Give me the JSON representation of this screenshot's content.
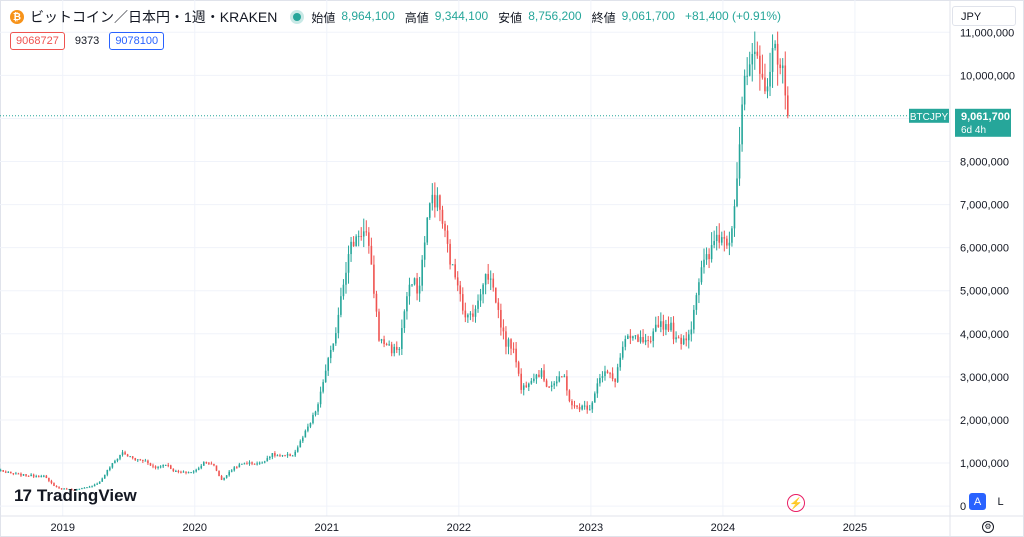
{
  "header": {
    "coin_glyph": "₿",
    "title": "ビットコイン／日本円・1週・KRAKEN",
    "ohlc": [
      {
        "label": "始値",
        "value": "8,964,100"
      },
      {
        "label": "高値",
        "value": "9,344,100"
      },
      {
        "label": "安値",
        "value": "8,756,200"
      },
      {
        "label": "終値",
        "value": "9,061,700"
      }
    ],
    "change": "+81,400 (+0.91%)"
  },
  "price_boxes": {
    "sell": "9068727",
    "spread": "9373",
    "buy": "9078100"
  },
  "currency": "JPY",
  "price_tag": {
    "symbol": "BTCJPY",
    "price": "9,061,700",
    "countdown": "6d 4h"
  },
  "logo": {
    "text": "TradingView"
  },
  "controls": {
    "auto": "A",
    "log": "L",
    "flash": "⚡",
    "settings": "⚙"
  },
  "colors": {
    "up": "#26a69a",
    "down": "#ef5350",
    "accent": "#2962ff"
  },
  "chart_data": {
    "type": "candlestick",
    "title": "ビットコイン／日本円・1週・KRAKEN",
    "interval": "1W",
    "y_ticks": [
      0,
      1000000,
      2000000,
      3000000,
      4000000,
      5000000,
      6000000,
      7000000,
      8000000,
      9000000,
      10000000,
      11000000
    ],
    "y_tick_labels": [
      "0",
      "1,000,000",
      "2,000,000",
      "3,000,000",
      "4,000,000",
      "5,000,000",
      "6,000,000",
      "7,000,000",
      "8,000,000",
      "9,000,000",
      "10,000,000",
      "11,000,000"
    ],
    "x_ticks": [
      2019,
      2020,
      2021,
      2022,
      2023,
      2024,
      2025
    ],
    "x_tick_labels": [
      "2019",
      "2020",
      "2021",
      "2022",
      "2023",
      "2024",
      "2025"
    ],
    "xlim": [
      2018.525,
      2025.72
    ],
    "ylim": [
      -230000,
      11750000
    ],
    "last_price": 9061700,
    "closes": [
      {
        "t": 2018.53,
        "v": 830000
      },
      {
        "t": 2018.6,
        "v": 760000
      },
      {
        "t": 2018.7,
        "v": 720000
      },
      {
        "t": 2018.8,
        "v": 700000
      },
      {
        "t": 2018.85,
        "v": 720000
      },
      {
        "t": 2018.9,
        "v": 560000
      },
      {
        "t": 2018.96,
        "v": 420000
      },
      {
        "t": 2019.0,
        "v": 400000
      },
      {
        "t": 2019.1,
        "v": 380000
      },
      {
        "t": 2019.2,
        "v": 440000
      },
      {
        "t": 2019.28,
        "v": 560000
      },
      {
        "t": 2019.35,
        "v": 880000
      },
      {
        "t": 2019.45,
        "v": 1250000
      },
      {
        "t": 2019.5,
        "v": 1150000
      },
      {
        "t": 2019.55,
        "v": 1080000
      },
      {
        "t": 2019.63,
        "v": 1050000
      },
      {
        "t": 2019.7,
        "v": 880000
      },
      {
        "t": 2019.78,
        "v": 980000
      },
      {
        "t": 2019.85,
        "v": 800000
      },
      {
        "t": 2019.92,
        "v": 780000
      },
      {
        "t": 2020.0,
        "v": 800000
      },
      {
        "t": 2020.08,
        "v": 1050000
      },
      {
        "t": 2020.15,
        "v": 920000
      },
      {
        "t": 2020.2,
        "v": 600000
      },
      {
        "t": 2020.3,
        "v": 900000
      },
      {
        "t": 2020.38,
        "v": 1000000
      },
      {
        "t": 2020.5,
        "v": 990000
      },
      {
        "t": 2020.58,
        "v": 1200000
      },
      {
        "t": 2020.67,
        "v": 1150000
      },
      {
        "t": 2020.75,
        "v": 1200000
      },
      {
        "t": 2020.82,
        "v": 1600000
      },
      {
        "t": 2020.88,
        "v": 1950000
      },
      {
        "t": 2020.94,
        "v": 2400000
      },
      {
        "t": 2021.0,
        "v": 3300000
      },
      {
        "t": 2021.05,
        "v": 3700000
      },
      {
        "t": 2021.12,
        "v": 5200000
      },
      {
        "t": 2021.18,
        "v": 6000000
      },
      {
        "t": 2021.25,
        "v": 6400000
      },
      {
        "t": 2021.3,
        "v": 6300000
      },
      {
        "t": 2021.35,
        "v": 5200000
      },
      {
        "t": 2021.4,
        "v": 3800000
      },
      {
        "t": 2021.45,
        "v": 3800000
      },
      {
        "t": 2021.5,
        "v": 3600000
      },
      {
        "t": 2021.55,
        "v": 3700000
      },
      {
        "t": 2021.6,
        "v": 4800000
      },
      {
        "t": 2021.65,
        "v": 5200000
      },
      {
        "t": 2021.7,
        "v": 5000000
      },
      {
        "t": 2021.75,
        "v": 6500000
      },
      {
        "t": 2021.8,
        "v": 7200000
      },
      {
        "t": 2021.85,
        "v": 7000000
      },
      {
        "t": 2021.9,
        "v": 6200000
      },
      {
        "t": 2021.95,
        "v": 5500000
      },
      {
        "t": 2022.0,
        "v": 5200000
      },
      {
        "t": 2022.05,
        "v": 4300000
      },
      {
        "t": 2022.1,
        "v": 4500000
      },
      {
        "t": 2022.15,
        "v": 4700000
      },
      {
        "t": 2022.2,
        "v": 5500000
      },
      {
        "t": 2022.25,
        "v": 5200000
      },
      {
        "t": 2022.3,
        "v": 4500000
      },
      {
        "t": 2022.35,
        "v": 3800000
      },
      {
        "t": 2022.42,
        "v": 3700000
      },
      {
        "t": 2022.47,
        "v": 2700000
      },
      {
        "t": 2022.5,
        "v": 2800000
      },
      {
        "t": 2022.55,
        "v": 3000000
      },
      {
        "t": 2022.62,
        "v": 3100000
      },
      {
        "t": 2022.67,
        "v": 2800000
      },
      {
        "t": 2022.72,
        "v": 2850000
      },
      {
        "t": 2022.8,
        "v": 3000000
      },
      {
        "t": 2022.85,
        "v": 2300000
      },
      {
        "t": 2022.92,
        "v": 2300000
      },
      {
        "t": 2023.0,
        "v": 2300000
      },
      {
        "t": 2023.05,
        "v": 2900000
      },
      {
        "t": 2023.12,
        "v": 3100000
      },
      {
        "t": 2023.18,
        "v": 2900000
      },
      {
        "t": 2023.25,
        "v": 3800000
      },
      {
        "t": 2023.32,
        "v": 3900000
      },
      {
        "t": 2023.4,
        "v": 3800000
      },
      {
        "t": 2023.45,
        "v": 3700000
      },
      {
        "t": 2023.5,
        "v": 4300000
      },
      {
        "t": 2023.55,
        "v": 4200000
      },
      {
        "t": 2023.6,
        "v": 4200000
      },
      {
        "t": 2023.65,
        "v": 3800000
      },
      {
        "t": 2023.7,
        "v": 3900000
      },
      {
        "t": 2023.75,
        "v": 4000000
      },
      {
        "t": 2023.8,
        "v": 5000000
      },
      {
        "t": 2023.85,
        "v": 5600000
      },
      {
        "t": 2023.9,
        "v": 5800000
      },
      {
        "t": 2023.95,
        "v": 6300000
      },
      {
        "t": 2024.0,
        "v": 6200000
      },
      {
        "t": 2024.05,
        "v": 6200000
      },
      {
        "t": 2024.1,
        "v": 7400000
      },
      {
        "t": 2024.15,
        "v": 9500000
      },
      {
        "t": 2024.2,
        "v": 10200000
      },
      {
        "t": 2024.25,
        "v": 10300000
      },
      {
        "t": 2024.3,
        "v": 9800000
      },
      {
        "t": 2024.35,
        "v": 10000000
      },
      {
        "t": 2024.4,
        "v": 10700000
      },
      {
        "t": 2024.45,
        "v": 10200000
      },
      {
        "t": 2024.47,
        "v": 9400000
      },
      {
        "t": 2024.5,
        "v": 9061700
      }
    ]
  }
}
